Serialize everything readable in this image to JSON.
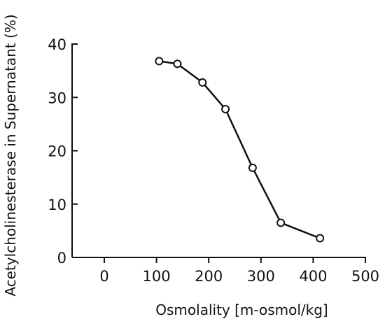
{
  "chart_data": {
    "type": "line",
    "title": "",
    "xlabel": "Osmolality [m-osmol/kg]",
    "ylabel": "Acetylcholinesterase in Supernatant (%)",
    "xlim": [
      0,
      500
    ],
    "ylim": [
      0,
      40
    ],
    "xticks": [
      0,
      100,
      200,
      300,
      400,
      500
    ],
    "yticks": [
      0,
      10,
      20,
      30,
      40
    ],
    "grid": false,
    "series": [
      {
        "x": [
          105,
          140,
          188,
          232,
          284,
          338,
          413
        ],
        "y": [
          36.8,
          36.3,
          32.8,
          27.8,
          16.8,
          6.5,
          3.6
        ]
      }
    ],
    "colors": {
      "line": "#111111",
      "marker_fill": "#ffffff"
    }
  }
}
